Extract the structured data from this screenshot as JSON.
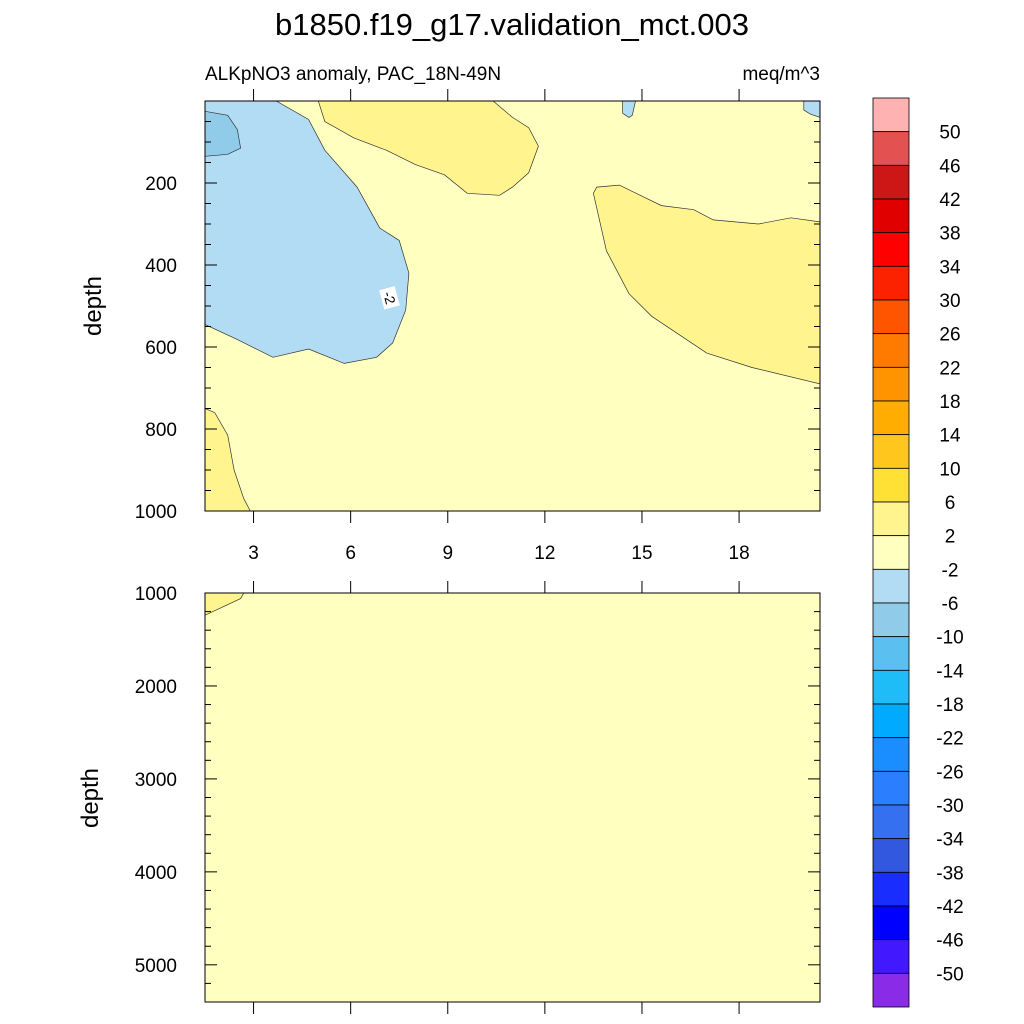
{
  "chart_data": {
    "type": "heatmap",
    "title": "b1850.f19_g17.validation_mct.003",
    "variable": "ALKpNO3 anomaly, PAC_18N-49N",
    "units": "meq/m^3",
    "panels": [
      {
        "name": "upper",
        "ylabel": "depth",
        "ylim": [
          0,
          1000
        ],
        "yticks": [
          200,
          400,
          600,
          800,
          1000
        ],
        "xlim": [
          1.5,
          20.5
        ],
        "xticks": [
          3,
          6,
          9,
          12,
          15,
          18
        ],
        "xticklabels": [
          "3",
          "6",
          "9",
          "12",
          "15",
          "18"
        ],
        "contour_labels": [
          {
            "text": "-2",
            "x": 7.2,
            "y": 480
          }
        ],
        "regions": [
          {
            "level": "-6 to -2",
            "color": "#b2dcf3",
            "polygon": [
              [
                1.5,
                0
              ],
              [
                3.7,
                0
              ],
              [
                4.7,
                45
              ],
              [
                5.2,
                120
              ],
              [
                6.2,
                210
              ],
              [
                6.9,
                310
              ],
              [
                7.5,
                340
              ],
              [
                7.8,
                420
              ],
              [
                7.7,
                510
              ],
              [
                7.3,
                590
              ],
              [
                6.8,
                625
              ],
              [
                5.8,
                640
              ],
              [
                4.7,
                605
              ],
              [
                3.6,
                625
              ],
              [
                2.5,
                582
              ],
              [
                1.5,
                545
              ]
            ]
          },
          {
            "level": "-10 to -6",
            "color": "#91cbea",
            "polygon": [
              [
                1.5,
                25
              ],
              [
                2.2,
                35
              ],
              [
                2.5,
                70
              ],
              [
                2.6,
                115
              ],
              [
                2.2,
                130
              ],
              [
                1.5,
                135
              ]
            ]
          },
          {
            "level": "-6 to -2",
            "color": "#b2dcf3",
            "polygon": [
              [
                14.4,
                0
              ],
              [
                14.8,
                0
              ],
              [
                14.7,
                35
              ],
              [
                14.6,
                40
              ],
              [
                14.4,
                30
              ]
            ]
          },
          {
            "level": "-6 to -2",
            "color": "#b2dcf3",
            "polygon": [
              [
                20.0,
                0
              ],
              [
                20.5,
                0
              ],
              [
                20.5,
                40
              ],
              [
                20.2,
                32
              ],
              [
                20.0,
                22
              ]
            ]
          },
          {
            "level": "2 to 6",
            "color": "#fff48d",
            "polygon": [
              [
                5.0,
                0
              ],
              [
                10.4,
                0
              ],
              [
                11.0,
                40
              ],
              [
                11.5,
                65
              ],
              [
                11.8,
                110
              ],
              [
                11.5,
                175
              ],
              [
                11.0,
                210
              ],
              [
                10.6,
                230
              ],
              [
                9.6,
                225
              ],
              [
                8.9,
                180
              ],
              [
                8.0,
                155
              ],
              [
                7.1,
                120
              ],
              [
                6.1,
                90
              ],
              [
                5.2,
                50
              ]
            ]
          },
          {
            "level": "2 to 6",
            "color": "#fff48d",
            "polygon": [
              [
                13.6,
                210
              ],
              [
                14.3,
                205
              ],
              [
                15.6,
                255
              ],
              [
                16.6,
                265
              ],
              [
                17.2,
                290
              ],
              [
                18.6,
                300
              ],
              [
                19.6,
                285
              ],
              [
                20.5,
                295
              ],
              [
                20.5,
                690
              ],
              [
                18.4,
                650
              ],
              [
                17.0,
                615
              ],
              [
                15.3,
                525
              ],
              [
                14.6,
                470
              ],
              [
                13.9,
                365
              ],
              [
                13.5,
                225
              ]
            ]
          },
          {
            "level": "2 to 6",
            "color": "#fff48d",
            "polygon": [
              [
                1.5,
                750
              ],
              [
                1.8,
                760
              ],
              [
                2.2,
                815
              ],
              [
                2.4,
                900
              ],
              [
                2.7,
                970
              ],
              [
                2.9,
                1000
              ],
              [
                1.5,
                1000
              ]
            ]
          }
        ]
      },
      {
        "name": "lower",
        "ylabel": "depth",
        "ylim": [
          1000,
          5400
        ],
        "yticks": [
          1000,
          2000,
          3000,
          4000,
          5000
        ],
        "xlim": [
          1.5,
          20.5
        ],
        "xticks": [
          3,
          6,
          9,
          12,
          15,
          18
        ],
        "regions": [
          {
            "level": "2 to 6",
            "color": "#fff48d",
            "polygon": [
              [
                1.5,
                1000
              ],
              [
                2.7,
                1000
              ],
              [
                2.6,
                1060
              ],
              [
                1.5,
                1240
              ]
            ]
          }
        ]
      }
    ],
    "background_color": "#ffffc0",
    "colorbar": {
      "labels": [
        "50",
        "46",
        "42",
        "38",
        "34",
        "30",
        "26",
        "22",
        "18",
        "14",
        "10",
        "6",
        "2",
        "-2",
        "-6",
        "-10",
        "-14",
        "-18",
        "-22",
        "-26",
        "-30",
        "-34",
        "-38",
        "-42",
        "-46",
        "-50"
      ],
      "colors": [
        "#ffb2b2",
        "#e35151",
        "#cd1616",
        "#e10000",
        "#ff0000",
        "#fc2200",
        "#ff5500",
        "#ff7b00",
        "#ff9400",
        "#ffad00",
        "#ffc71e",
        "#ffe034",
        "#fff48d",
        "#ffffc0",
        "#b2dcf3",
        "#91cbea",
        "#5bbff0",
        "#1fbdf7",
        "#00aaff",
        "#1a8dff",
        "#2b7fff",
        "#3470ef",
        "#3358e0",
        "#1a2dff",
        "#0000ff",
        "#4218ff",
        "#8a2be8"
      ]
    }
  }
}
